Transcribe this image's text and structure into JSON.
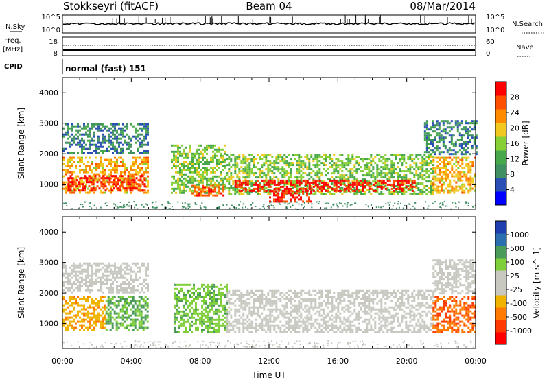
{
  "header": {
    "station": "Stokkseyri (fitACF)",
    "beam": "Beam 04",
    "date": "08/Mar/2014"
  },
  "top_panels": {
    "nsky_label": "N.Sky",
    "nsky_ticks": [
      "10^5",
      "10^0"
    ],
    "nsearch_label": "N.Search",
    "nsearch_ticks": [
      "10^5",
      "10^0"
    ],
    "freq_label_line1": "Freq.",
    "freq_label_line2": "[MHz]",
    "freq_ticks": [
      "18",
      "8"
    ],
    "nave_label": "Nave",
    "nave_ticks": [
      "60",
      "0"
    ],
    "cpid_label": "CPID",
    "cpid_value": "normal (fast) 151"
  },
  "colors": {
    "power_scale": [
      "#0000ff",
      "#2a4fb5",
      "#3f8f62",
      "#46a84a",
      "#86cf35",
      "#f0c81e",
      "#ff8c00",
      "#ff5000",
      "#ff0000"
    ],
    "velocity_scale": [
      "#1f3fb0",
      "#2c6fb0",
      "#4a9a5a",
      "#7fcf3a",
      "#c8c8c0",
      "#c8c8c0",
      "#f0b400",
      "#ff7a00",
      "#ff3a00",
      "#ff0000"
    ]
  },
  "chart_data": [
    {
      "type": "heatmap",
      "title": "",
      "xlabel": "Time UT",
      "ylabel": "Slant Range [km]",
      "xlim": [
        "00:00",
        "24:00"
      ],
      "x_ticks": [
        "00:00",
        "04:00",
        "08:00",
        "12:00",
        "16:00",
        "20:00",
        "00:00"
      ],
      "ylim": [
        180,
        4500
      ],
      "y_ticks": [
        1000,
        2000,
        3000,
        4000
      ],
      "colorbar": {
        "label": "Power [dB]",
        "ticks": [
          "4",
          "8",
          "12",
          "16",
          "20",
          "24",
          "28"
        ],
        "range": [
          0,
          30
        ]
      },
      "echo_regions": [
        {
          "t_start": 0.0,
          "t_end": 5.0,
          "r_low": 700,
          "r_high": 1900,
          "power": 20
        },
        {
          "t_start": 0.3,
          "t_end": 4.8,
          "r_low": 800,
          "r_high": 1300,
          "power": 28
        },
        {
          "t_start": 0.0,
          "t_end": 5.0,
          "r_low": 2000,
          "r_high": 3000,
          "power": 8
        },
        {
          "t_start": 6.3,
          "t_end": 9.5,
          "r_low": 700,
          "r_high": 2300,
          "power": 14
        },
        {
          "t_start": 7.5,
          "t_end": 9.3,
          "r_low": 650,
          "r_high": 1000,
          "power": 24
        },
        {
          "t_start": 9.5,
          "t_end": 21.5,
          "r_low": 700,
          "r_high": 2000,
          "power": 14
        },
        {
          "t_start": 10.0,
          "t_end": 20.5,
          "r_low": 800,
          "r_high": 1150,
          "power": 28
        },
        {
          "t_start": 12.0,
          "t_end": 14.5,
          "r_low": 400,
          "r_high": 800,
          "power": 28
        },
        {
          "t_start": 21.5,
          "t_end": 24.0,
          "r_low": 700,
          "r_high": 1900,
          "power": 20
        },
        {
          "t_start": 21.0,
          "t_end": 24.0,
          "r_low": 2000,
          "r_high": 3100,
          "power": 8
        }
      ]
    },
    {
      "type": "heatmap",
      "title": "",
      "xlabel": "Time UT",
      "ylabel": "Slant Range [km]",
      "xlim": [
        "00:00",
        "24:00"
      ],
      "x_ticks": [
        "00:00",
        "04:00",
        "08:00",
        "12:00",
        "16:00",
        "20:00",
        "00:00"
      ],
      "ylim": [
        180,
        4500
      ],
      "y_ticks": [
        1000,
        2000,
        3000,
        4000
      ],
      "colorbar": {
        "label": "Velocity [m s^-1]",
        "ticks": [
          "1000",
          "500",
          "100",
          "25",
          "-25",
          "-100",
          "-500",
          "-1000"
        ],
        "range": [
          -1200,
          1200
        ]
      },
      "echo_regions": [
        {
          "t_start": 0.0,
          "t_end": 2.5,
          "r_low": 800,
          "r_high": 1900,
          "velocity": -400
        },
        {
          "t_start": 2.5,
          "t_end": 5.0,
          "r_low": 800,
          "r_high": 1900,
          "velocity": 500
        },
        {
          "t_start": 0.0,
          "t_end": 5.0,
          "r_low": 2000,
          "r_high": 3000,
          "velocity": 0
        },
        {
          "t_start": 6.5,
          "t_end": 9.5,
          "r_low": 700,
          "r_high": 2300,
          "velocity": 400
        },
        {
          "t_start": 9.5,
          "t_end": 21.5,
          "r_low": 700,
          "r_high": 2100,
          "velocity": 0
        },
        {
          "t_start": 21.5,
          "t_end": 24.0,
          "r_low": 700,
          "r_high": 1900,
          "velocity": -700
        },
        {
          "t_start": 21.5,
          "t_end": 24.0,
          "r_low": 2000,
          "r_high": 3100,
          "velocity": 0
        }
      ]
    }
  ]
}
